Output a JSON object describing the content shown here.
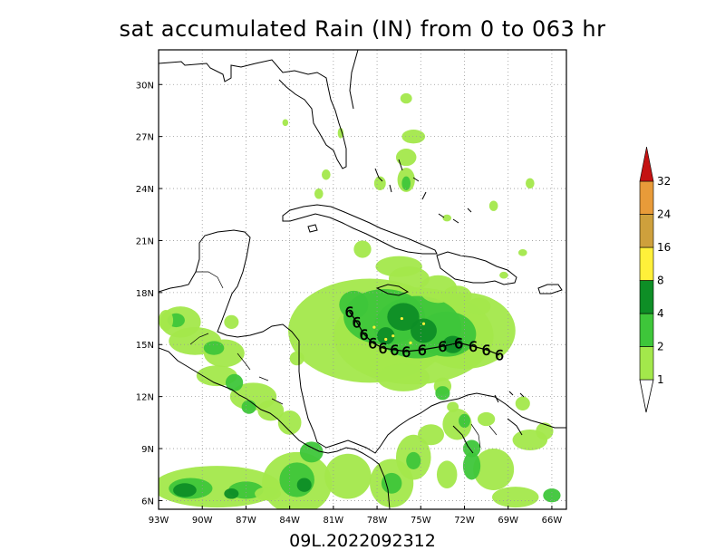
{
  "title": "sat accumulated Rain (IN) from 0 to 063 hr",
  "footer": "09L.2022092312",
  "colors": {
    "c1": "#a3e84b",
    "c2": "#3ec63a",
    "c4": "#0e8e26",
    "c8": "#fff03a",
    "c16": "#cea03c",
    "c24": "#e89b39",
    "c32": "#c41212",
    "land": "#ffffff",
    "grid": "#999999"
  },
  "map": {
    "lon_range": [
      -93,
      -65
    ],
    "lat_range": [
      5.5,
      32
    ]
  },
  "axes": {
    "lat_ticks": [
      {
        "value": 30,
        "label": "30N"
      },
      {
        "value": 27,
        "label": "27N"
      },
      {
        "value": 24,
        "label": "24N"
      },
      {
        "value": 21,
        "label": "21N"
      },
      {
        "value": 18,
        "label": "18N"
      },
      {
        "value": 15,
        "label": "15N"
      },
      {
        "value": 12,
        "label": "12N"
      },
      {
        "value": 9,
        "label": "9N"
      },
      {
        "value": 6,
        "label": "6N"
      }
    ],
    "lon_ticks": [
      {
        "value": -93,
        "label": "93W"
      },
      {
        "value": -90,
        "label": "90W"
      },
      {
        "value": -87,
        "label": "87W"
      },
      {
        "value": -84,
        "label": "84W"
      },
      {
        "value": -81,
        "label": "81W"
      },
      {
        "value": -78,
        "label": "78W"
      },
      {
        "value": -75,
        "label": "75W"
      },
      {
        "value": -72,
        "label": "72W"
      },
      {
        "value": -69,
        "label": "69W"
      },
      {
        "value": -66,
        "label": "66W"
      }
    ]
  },
  "colorbar": {
    "levels": [
      {
        "label": "1",
        "color": "#a3e84b"
      },
      {
        "label": "2",
        "color": "#3ec63a"
      },
      {
        "label": "4",
        "color": "#0e8e26"
      },
      {
        "label": "8",
        "color": "#fff03a"
      },
      {
        "label": "16",
        "color": "#cea03c"
      },
      {
        "label": "24",
        "color": "#e89b39"
      },
      {
        "label": "32",
        "color": "#c41212"
      }
    ]
  },
  "track": [
    {
      "lon": -79.9,
      "lat": 16.9
    },
    {
      "lon": -79.4,
      "lat": 16.3
    },
    {
      "lon": -78.9,
      "lat": 15.6
    },
    {
      "lon": -78.3,
      "lat": 15.1
    },
    {
      "lon": -77.6,
      "lat": 14.8
    },
    {
      "lon": -76.8,
      "lat": 14.7
    },
    {
      "lon": -76.0,
      "lat": 14.6
    },
    {
      "lon": -74.9,
      "lat": 14.7
    },
    {
      "lon": -73.5,
      "lat": 14.9
    },
    {
      "lon": -72.4,
      "lat": 15.1
    },
    {
      "lon": -71.4,
      "lat": 14.9
    },
    {
      "lon": -70.5,
      "lat": 14.7
    },
    {
      "lon": -69.6,
      "lat": 14.4
    }
  ],
  "storm_symbol": "6"
}
